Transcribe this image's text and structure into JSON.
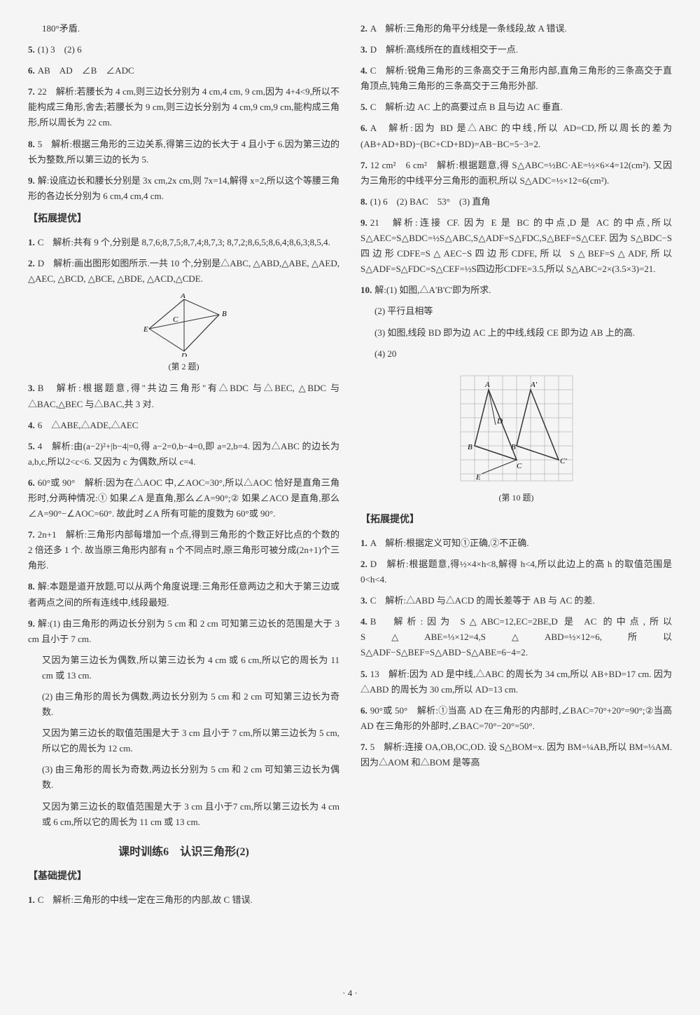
{
  "left": {
    "top": "180°矛盾.",
    "items": [
      {
        "n": "5.",
        "t": "(1) 3　(2) 6"
      },
      {
        "n": "6.",
        "t": "AB　AD　∠B　∠ADC"
      },
      {
        "n": "7.",
        "t": "22　解析:若腰长为 4 cm,则三边长分别为 4 cm,4 cm, 9 cm,因为 4+4<9,所以不能构成三角形,舍去;若腰长为 9 cm,则三边长分别为 4 cm,9 cm,9 cm,能构成三角形,所以周长为 22 cm."
      },
      {
        "n": "8.",
        "t": "5　解析:根据三角形的三边关系,得第三边的长大于 4 且小于 6.因为第三边的长为整数,所以第三边的长为 5."
      },
      {
        "n": "9.",
        "t": "解:设底边长和腰长分别是 3x cm,2x cm,则 7x=14,解得 x=2,所以这个等腰三角形的各边长分别为 6 cm,4 cm,4 cm."
      }
    ],
    "ext_title": "【拓展提优】",
    "ext_items": [
      {
        "n": "1.",
        "t": "C　解析:共有 9 个,分别是 8,7,6;8,7,5;8,7,4;8,7,3; 8,7,2;8,6,5;8,6,4;8,6,3;8,5,4."
      },
      {
        "n": "2.",
        "t": "D　解析:画出图形如图所示.一共 10 个,分别是△ABC, △ABD,△ABE, △AED, △AEC, △BCD, △BCE, △BDE, △ACD,△CDE."
      }
    ],
    "fig2_caption": "(第 2 题)",
    "ext_items2": [
      {
        "n": "3.",
        "t": "B　解析:根据题意,得\"共边三角形\"有△BDC 与△BEC, △BDC 与△BAC,△BEC 与△BAC,共 3 对."
      },
      {
        "n": "4.",
        "t": "6　△ABE,△ADE,△AEC"
      },
      {
        "n": "5.",
        "t": "4　解析:由(a−2)²+|b−4|=0,得 a−2=0,b−4=0,即 a=2,b=4. 因为△ABC 的边长为 a,b,c,所以2<c<6. 又因为 c 为偶数,所以 c=4."
      },
      {
        "n": "6.",
        "t": "60°或 90°　解析:因为在△AOC 中,∠AOC=30°,所以△AOC 恰好是直角三角形时,分两种情况:① 如果∠A 是直角,那么∠A=90°;② 如果∠ACO 是直角,那么∠A=90°−∠AOC=60°. 故此时∠A 所有可能的度数为 60°或 90°."
      },
      {
        "n": "7.",
        "t": "2n+1　解析:三角形内部每增加一个点,得到三角形的个数正好比点的个数的 2 倍还多 1 个. 故当原三角形内部有 n 个不同点时,原三角形可被分成(2n+1)个三角形."
      },
      {
        "n": "8.",
        "t": "解:本题是道开放题,可以从两个角度说理:三角形任意两边之和大于第三边或者两点之间的所有连线中,线段最短."
      },
      {
        "n": "9.",
        "t": "解:(1) 由三角形的两边长分别为 5 cm 和 2 cm 可知第三边长的范围是大于 3 cm 且小于 7 cm."
      }
    ],
    "q9_parts": [
      "又因为第三边长为偶数,所以第三边长为 4 cm 或 6 cm,所以它的周长为 11 cm 或 13 cm.",
      "(2) 由三角形的周长为偶数,两边长分别为 5 cm 和 2 cm 可知第三边长为奇数.",
      "又因为第三边长的取值范围是大于 3 cm 且小于 7 cm,所以第三边长为 5 cm,所以它的周长为 12 cm.",
      "(3) 由三角形的周长为奇数,两边长分别为 5 cm 和 2 cm 可知第三边长为偶数.",
      "又因为第三边长的取值范围是大于 3 cm 且小于7 cm,所以第三边长为 4 cm 或 6 cm,所以它的周长为 11 cm 或 13 cm."
    ],
    "lesson_title": "课时训练6　认识三角形(2)",
    "base_title": "【基础提优】",
    "base_items": [
      {
        "n": "1.",
        "t": "C　解析:三角形的中线一定在三角形的内部,故 C 错误."
      }
    ]
  },
  "right": {
    "base_items": [
      {
        "n": "2.",
        "t": "A　解析:三角形的角平分线是一条线段,故 A 错误."
      },
      {
        "n": "3.",
        "t": "D　解析:高线所在的直线相交于一点."
      },
      {
        "n": "4.",
        "t": "C　解析:锐角三角形的三条高交于三角形内部,直角三角形的三条高交于直角顶点,钝角三角形的三条高交于三角形外部."
      },
      {
        "n": "5.",
        "t": "C　解析:边 AC 上的高要过点 B 且与边 AC 垂直."
      },
      {
        "n": "6.",
        "t": "A　解析:因为 BD 是△ABC 的中线,所以 AD=CD,所以周长的差为(AB+AD+BD)−(BC+CD+BD)=AB−BC=5−3=2."
      },
      {
        "n": "7.",
        "t": "12 cm²　6 cm²　解析:根据题意,得 S△ABC=½BC·AE=½×6×4=12(cm²). 又因为三角形的中线平分三角形的面积,所以 S△ADC=½×12=6(cm²)."
      },
      {
        "n": "8.",
        "t": "(1) 6　(2) BAC　53°　(3) 直角"
      },
      {
        "n": "9.",
        "t": "21　解析:连接 CF. 因为 E 是 BC 的中点,D 是 AC 的中点,所以 S△AEC=S△BDC=½S△ABC,S△ADF=S△FDC,S△BEF=S△CEF. 因为 S△BDC−S四边形CDFE=S△AEC−S四边形CDFE,所以 S△BEF=S△ADF,所以 S△ADF=S△FDC=S△CEF=½S四边形CDFE=3.5,所以 S△ABC=2×(3.5×3)=21."
      },
      {
        "n": "10.",
        "t": "解:(1) 如图,△A'B'C'即为所求."
      }
    ],
    "q10_parts": [
      "(2) 平行且相等",
      "(3) 如图,线段 BD 即为边 AC 上的中线,线段 CE 即为边 AB 上的高.",
      "(4) 20"
    ],
    "fig10_caption": "(第 10 题)",
    "ext_title": "【拓展提优】",
    "ext_items": [
      {
        "n": "1.",
        "t": "A　解析:根据定义可知①正确,②不正确."
      },
      {
        "n": "2.",
        "t": "D　解析:根据题意,得½×4×h<8,解得 h<4,所以此边上的高 h 的取值范围是 0<h<4."
      },
      {
        "n": "3.",
        "t": "C　解析:△ABD 与△ACD 的周长差等于 AB 与 AC 的差."
      },
      {
        "n": "4.",
        "t": "B　解析:因为 S△ABC=12,EC=2BE,D 是 AC 的中点,所以 S△ABE=⅓×12=4,S△ABD=½×12=6,所以 S△ADF−S△BEF=S△ABD−S△ABE=6−4=2."
      },
      {
        "n": "5.",
        "t": "13　解析:因为 AD 是中线,△ABC 的周长为 34 cm,所以 AB+BD=17 cm. 因为△ABD 的周长为 30 cm,所以 AD=13 cm."
      },
      {
        "n": "6.",
        "t": "90°或 50°　解析:①当高 AD 在三角形的内部时,∠BAC=70°+20°=90°;②当高 AD 在三角形的外部时,∠BAC=70°−20°=50°."
      },
      {
        "n": "7.",
        "t": "5　解析:连接 OA,OB,OC,OD. 设 S△BOM=x. 因为 BM=¼AB,所以 BM=⅓AM. 因为△AOM 和△BOM 是等高"
      }
    ]
  },
  "page_num": "· 4 ·"
}
